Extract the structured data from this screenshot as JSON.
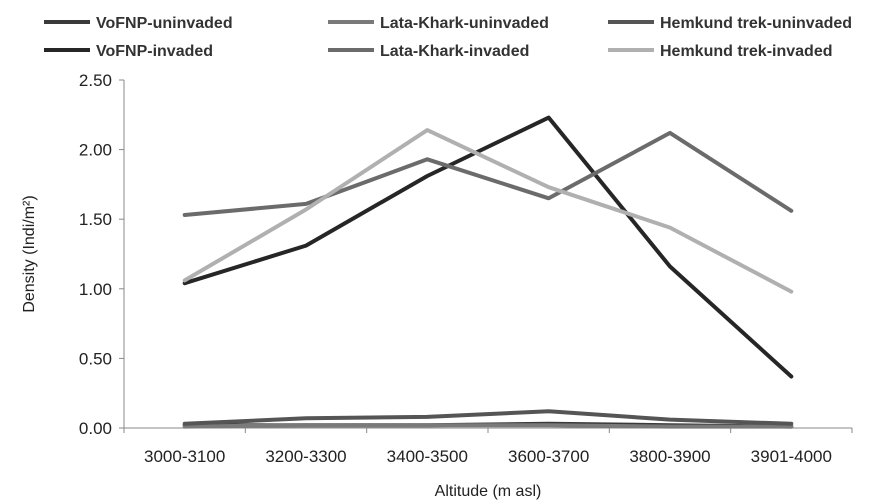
{
  "chart_data": {
    "type": "line",
    "categories": [
      "3000-3100",
      "3200-3300",
      "3400-3500",
      "3600-3700",
      "3800-3900",
      "3901-4000"
    ],
    "xlabel": "Altitude (m asl)",
    "ylabel": "Density (Indi/m²)",
    "ylim": [
      0,
      2.5
    ],
    "yticks": [
      "0.00",
      "0.50",
      "1.00",
      "1.50",
      "2.00",
      "2.50"
    ],
    "grid": false,
    "legend_position": "top",
    "series": [
      {
        "name": "VoFNP-uninvaded",
        "color": "#3a3a3a",
        "values": [
          0.02,
          0.02,
          0.02,
          0.03,
          0.02,
          0.01
        ]
      },
      {
        "name": "Lata-Khark-uninvaded",
        "color": "#7a7a7a",
        "values": [
          0.01,
          0.02,
          0.02,
          0.02,
          0.01,
          0.01
        ]
      },
      {
        "name": "Hemkund trek-uninvaded",
        "color": "#555555",
        "values": [
          0.03,
          0.07,
          0.08,
          0.12,
          0.06,
          0.03
        ]
      },
      {
        "name": "VoFNP-invaded",
        "color": "#262626",
        "values": [
          1.04,
          1.31,
          1.81,
          2.23,
          1.16,
          0.37
        ]
      },
      {
        "name": "Lata-Khark-invaded",
        "color": "#6b6b6b",
        "values": [
          1.53,
          1.61,
          1.93,
          1.65,
          2.12,
          1.56
        ]
      },
      {
        "name": "Hemkund trek-invaded",
        "color": "#b0b0b0",
        "values": [
          1.06,
          1.57,
          2.14,
          1.73,
          1.44,
          0.98
        ]
      }
    ]
  }
}
